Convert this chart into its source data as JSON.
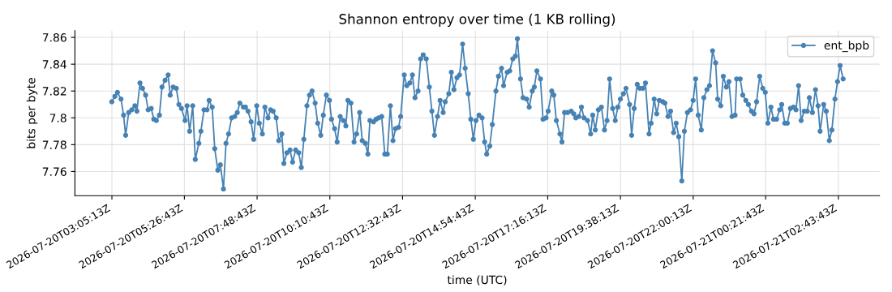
{
  "chart_data": {
    "type": "line",
    "title": "Shannon entropy over time (1 KB rolling)",
    "xlabel": "time (UTC)",
    "ylabel": "bits per byte",
    "xlim": [
      "2026-07-20T01:53",
      "2026-07-21T04:04"
    ],
    "ylim": [
      7.742,
      7.865
    ],
    "xticks": [
      {
        "value": "2026-07-20T03:05:13",
        "label": "2026-07-20T03:05:13Z"
      },
      {
        "value": "2026-07-20T05:26:43",
        "label": "2026-07-20T05:26:43Z"
      },
      {
        "value": "2026-07-20T07:48:43",
        "label": "2026-07-20T07:48:43Z"
      },
      {
        "value": "2026-07-20T10:10:43",
        "label": "2026-07-20T10:10:43Z"
      },
      {
        "value": "2026-07-20T12:32:43",
        "label": "2026-07-20T12:32:43Z"
      },
      {
        "value": "2026-07-20T14:54:43",
        "label": "2026-07-20T14:54:43Z"
      },
      {
        "value": "2026-07-20T17:16:13",
        "label": "2026-07-20T17:16:13Z"
      },
      {
        "value": "2026-07-20T19:38:13",
        "label": "2026-07-20T19:38:13Z"
      },
      {
        "value": "2026-07-20T22:00:13",
        "label": "2026-07-20T22:00:13Z"
      },
      {
        "value": "2026-07-21T00:21:43",
        "label": "2026-07-21T00:21:43Z"
      },
      {
        "value": "2026-07-21T02:43:43",
        "label": "2026-07-21T02:43:43Z"
      }
    ],
    "yticks": [
      7.76,
      7.78,
      7.8,
      7.82,
      7.84,
      7.86
    ],
    "grid": true,
    "legend": "top right",
    "marker": "circle",
    "line_style": "solid",
    "series": [
      {
        "name": "ent_bpb",
        "color": "#4682b4",
        "x": [
          "2026-07-20T03:05",
          "2026-07-20T03:11",
          "2026-07-20T03:16",
          "2026-07-20T03:23",
          "2026-07-20T03:28",
          "2026-07-20T03:32",
          "2026-07-20T03:38",
          "2026-07-20T03:44",
          "2026-07-20T03:50",
          "2026-07-20T03:54",
          "2026-07-20T04:00",
          "2026-07-20T04:05",
          "2026-07-20T04:11",
          "2026-07-20T04:16",
          "2026-07-20T04:22",
          "2026-07-20T04:27",
          "2026-07-20T04:32",
          "2026-07-20T04:38",
          "2026-07-20T04:43",
          "2026-07-20T04:49",
          "2026-07-20T04:55",
          "2026-07-20T04:59",
          "2026-07-20T05:05",
          "2026-07-20T05:11",
          "2026-07-20T05:16",
          "2026-07-20T05:21",
          "2026-07-20T05:28",
          "2026-07-20T05:32",
          "2026-07-20T05:37",
          "2026-07-20T05:43",
          "2026-07-20T05:48",
          "2026-07-20T05:55",
          "2026-07-20T05:59",
          "2026-07-20T06:05",
          "2026-07-20T06:11",
          "2026-07-20T06:15",
          "2026-07-20T06:21",
          "2026-07-20T06:26",
          "2026-07-20T06:32",
          "2026-07-20T06:37",
          "2026-07-20T06:43",
          "2026-07-20T06:48",
          "2026-07-20T06:53",
          "2026-07-20T06:59",
          "2026-07-20T07:05",
          "2026-07-20T07:10",
          "2026-07-20T07:15",
          "2026-07-20T07:22",
          "2026-07-20T07:26",
          "2026-07-20T07:31",
          "2026-07-20T07:37",
          "2026-07-20T07:42",
          "2026-07-20T07:48",
          "2026-07-20T07:53",
          "2026-07-20T07:59",
          "2026-07-20T08:04",
          "2026-07-20T08:10",
          "2026-07-20T08:15",
          "2026-07-20T08:20",
          "2026-07-20T08:26",
          "2026-07-20T08:31",
          "2026-07-20T08:37",
          "2026-07-20T08:41",
          "2026-07-20T08:47",
          "2026-07-20T08:53",
          "2026-07-20T08:58",
          "2026-07-20T09:04",
          "2026-07-20T09:10",
          "2026-07-20T09:15",
          "2026-07-20T09:20",
          "2026-07-20T09:26",
          "2026-07-20T09:31",
          "2026-07-20T09:36",
          "2026-07-20T09:42",
          "2026-07-20T09:47",
          "2026-07-20T09:53",
          "2026-07-20T09:58",
          "2026-07-20T10:04",
          "2026-07-20T10:10",
          "2026-07-20T10:14",
          "2026-07-20T10:20",
          "2026-07-20T10:25",
          "2026-07-20T10:31",
          "2026-07-20T10:37",
          "2026-07-20T10:42",
          "2026-07-20T10:46",
          "2026-07-20T10:52",
          "2026-07-20T10:58",
          "2026-07-20T11:03",
          "2026-07-20T11:09",
          "2026-07-20T11:14",
          "2026-07-20T11:20",
          "2026-07-20T11:25",
          "2026-07-20T11:29",
          "2026-07-20T11:36",
          "2026-07-20T11:41",
          "2026-07-20T11:46",
          "2026-07-20T11:52",
          "2026-07-20T11:58",
          "2026-07-20T12:03",
          "2026-07-20T12:09",
          "2026-07-20T12:14",
          "2026-07-20T12:19",
          "2026-07-20T12:25",
          "2026-07-20T12:29",
          "2026-07-20T12:36",
          "2026-07-20T12:41",
          "2026-07-20T12:47",
          "2026-07-20T12:52",
          "2026-07-20T12:57",
          "2026-07-20T13:03",
          "2026-07-20T13:08",
          "2026-07-20T13:13",
          "2026-07-20T13:19",
          "2026-07-20T13:25",
          "2026-07-20T13:30",
          "2026-07-20T13:35",
          "2026-07-20T13:41",
          "2026-07-20T13:46",
          "2026-07-20T13:52",
          "2026-07-20T13:56",
          "2026-07-20T14:03",
          "2026-07-20T14:08",
          "2026-07-20T14:13",
          "2026-07-20T14:19",
          "2026-07-20T14:24",
          "2026-07-20T14:30",
          "2026-07-20T14:35",
          "2026-07-20T14:41",
          "2026-07-20T14:46",
          "2026-07-20T14:51",
          "2026-07-20T14:56",
          "2026-07-20T15:02",
          "2026-07-20T15:08",
          "2026-07-20T15:13",
          "2026-07-20T15:17",
          "2026-07-20T15:23",
          "2026-07-20T15:28",
          "2026-07-20T15:35",
          "2026-07-20T15:40",
          "2026-07-20T15:46",
          "2026-07-20T15:50",
          "2026-07-20T15:57",
          "2026-07-20T16:02",
          "2026-07-20T16:08",
          "2026-07-20T16:13",
          "2026-07-20T16:17",
          "2026-07-20T16:23",
          "2026-07-20T16:28",
          "2026-07-20T16:35",
          "2026-07-20T16:40",
          "2026-07-20T16:46",
          "2026-07-20T16:50",
          "2026-07-20T16:55",
          "2026-07-20T17:02",
          "2026-07-20T17:07",
          "2026-07-20T17:13",
          "2026-07-20T17:17",
          "2026-07-20T17:24",
          "2026-07-20T17:28",
          "2026-07-20T17:33",
          "2026-07-20T17:40",
          "2026-07-20T17:44",
          "2026-07-20T17:49",
          "2026-07-20T17:55",
          "2026-07-20T18:02",
          "2026-07-20T18:07",
          "2026-07-20T18:11",
          "2026-07-20T18:17",
          "2026-07-20T18:22",
          "2026-07-20T18:27",
          "2026-07-20T18:34",
          "2026-07-20T18:40",
          "2026-07-20T18:44",
          "2026-07-20T18:49",
          "2026-07-20T18:55",
          "2026-07-20T19:01",
          "2026-07-20T19:07",
          "2026-07-20T19:12",
          "2026-07-20T19:17",
          "2026-07-20T19:23",
          "2026-07-20T19:28",
          "2026-07-20T19:33",
          "2026-07-20T19:38",
          "2026-07-20T19:44",
          "2026-07-20T19:49",
          "2026-07-20T19:56",
          "2026-07-20T20:00",
          "2026-07-20T20:05",
          "2026-07-20T20:11",
          "2026-07-20T20:16",
          "2026-07-20T20:22",
          "2026-07-20T20:27",
          "2026-07-20T20:34",
          "2026-07-20T20:38",
          "2026-07-20T20:44",
          "2026-07-20T20:49",
          "2026-07-20T20:54",
          "2026-07-20T21:01",
          "2026-07-20T21:05",
          "2026-07-20T21:11",
          "2026-07-20T21:16",
          "2026-07-20T21:22",
          "2026-07-20T21:27",
          "2026-07-20T21:32",
          "2026-07-20T21:38",
          "2026-07-20T21:43",
          "2026-07-20T21:49",
          "2026-07-20T21:55",
          "2026-07-20T22:00",
          "2026-07-20T22:05",
          "2026-07-20T22:10",
          "2026-07-20T22:16",
          "2026-07-20T22:21",
          "2026-07-20T22:27",
          "2026-07-20T22:32",
          "2026-07-20T22:38",
          "2026-07-20T22:44",
          "2026-07-20T22:48",
          "2026-07-20T22:54",
          "2026-07-20T22:59",
          "2026-07-20T23:05",
          "2026-07-20T23:10",
          "2026-07-20T23:16",
          "2026-07-20T23:22",
          "2026-07-20T23:25",
          "2026-07-20T23:32",
          "2026-07-20T23:37",
          "2026-07-20T23:43",
          "2026-07-20T23:48",
          "2026-07-20T23:54",
          "2026-07-20T23:59",
          "2026-07-21T00:04",
          "2026-07-21T00:10",
          "2026-07-21T00:16",
          "2026-07-21T00:21",
          "2026-07-21T00:26",
          "2026-07-21T00:32",
          "2026-07-21T00:37",
          "2026-07-21T00:43",
          "2026-07-21T00:49",
          "2026-07-21T00:53",
          "2026-07-21T00:59",
          "2026-07-21T01:04",
          "2026-07-21T01:10",
          "2026-07-21T01:16",
          "2026-07-21T01:21",
          "2026-07-21T01:26",
          "2026-07-21T01:31",
          "2026-07-21T01:37",
          "2026-07-21T01:43",
          "2026-07-21T01:47",
          "2026-07-21T01:53",
          "2026-07-21T01:59",
          "2026-07-21T02:04",
          "2026-07-21T02:08",
          "2026-07-21T02:15",
          "2026-07-21T02:20",
          "2026-07-21T02:26",
          "2026-07-21T02:31",
          "2026-07-21T02:37",
          "2026-07-21T02:42",
          "2026-07-21T02:47",
          "2026-07-21T02:53"
        ],
        "values": [
          7.812,
          7.816,
          7.819,
          7.814,
          7.802,
          7.787,
          7.804,
          7.806,
          7.809,
          7.805,
          7.826,
          7.822,
          7.817,
          7.806,
          7.807,
          7.799,
          7.798,
          7.802,
          7.823,
          7.828,
          7.832,
          7.817,
          7.823,
          7.822,
          7.81,
          7.807,
          7.798,
          7.809,
          7.79,
          7.809,
          7.769,
          7.781,
          7.79,
          7.806,
          7.806,
          7.813,
          7.808,
          7.777,
          7.761,
          7.765,
          7.747,
          7.781,
          7.788,
          7.8,
          7.801,
          7.804,
          7.811,
          7.808,
          7.808,
          7.805,
          7.797,
          7.784,
          7.809,
          7.796,
          7.788,
          7.808,
          7.8,
          7.806,
          7.805,
          7.8,
          7.783,
          7.788,
          7.766,
          7.774,
          7.776,
          7.767,
          7.776,
          7.774,
          7.763,
          7.784,
          7.809,
          7.817,
          7.82,
          7.811,
          7.796,
          7.787,
          7.802,
          7.817,
          7.813,
          7.799,
          7.792,
          7.782,
          7.801,
          7.798,
          7.794,
          7.813,
          7.811,
          7.782,
          7.788,
          7.804,
          7.783,
          7.781,
          7.773,
          7.798,
          7.797,
          7.799,
          7.8,
          7.801,
          7.773,
          7.773,
          7.809,
          7.783,
          7.792,
          7.793,
          7.801,
          7.832,
          7.824,
          7.826,
          7.832,
          7.815,
          7.82,
          7.844,
          7.847,
          7.844,
          7.823,
          7.805,
          7.787,
          7.801,
          7.813,
          7.804,
          7.812,
          7.818,
          7.834,
          7.821,
          7.83,
          7.832,
          7.855,
          7.837,
          7.818,
          7.799,
          7.784,
          7.798,
          7.802,
          7.8,
          7.782,
          7.773,
          7.779,
          7.795,
          7.82,
          7.831,
          7.837,
          7.824,
          7.834,
          7.835,
          7.844,
          7.846,
          7.859,
          7.829,
          7.815,
          7.814,
          7.808,
          7.82,
          7.823,
          7.835,
          7.829,
          7.799,
          7.8,
          7.805,
          7.82,
          7.817,
          7.798,
          7.788,
          7.782,
          7.804,
          7.804,
          7.805,
          7.803,
          7.8,
          7.801,
          7.808,
          7.8,
          7.798,
          7.788,
          7.802,
          7.791,
          7.806,
          7.808,
          7.791,
          7.798,
          7.829,
          7.807,
          7.798,
          7.808,
          7.814,
          7.818,
          7.822,
          7.81,
          7.787,
          7.807,
          7.825,
          7.822,
          7.822,
          7.826,
          7.788,
          7.796,
          7.814,
          7.803,
          7.813,
          7.812,
          7.811,
          7.801,
          7.805,
          7.789,
          7.796,
          7.786,
          7.753,
          7.79,
          7.804,
          7.806,
          7.813,
          7.829,
          7.802,
          7.791,
          7.815,
          7.821,
          7.824,
          7.85,
          7.841,
          7.814,
          7.809,
          7.831,
          7.823,
          7.827,
          7.801,
          7.802,
          7.829,
          7.829,
          7.817,
          7.813,
          7.81,
          7.805,
          7.803,
          7.812,
          7.831,
          7.822,
          7.819,
          7.796,
          7.808,
          7.799,
          7.799,
          7.806,
          7.81,
          7.796,
          7.796,
          7.807,
          7.808,
          7.806,
          7.824,
          7.798,
          7.805,
          7.805,
          7.815,
          7.804,
          7.821,
          7.809,
          7.79,
          7.81,
          7.805,
          7.783,
          7.791,
          7.814,
          7.827,
          7.839,
          7.829
        ]
      }
    ]
  }
}
